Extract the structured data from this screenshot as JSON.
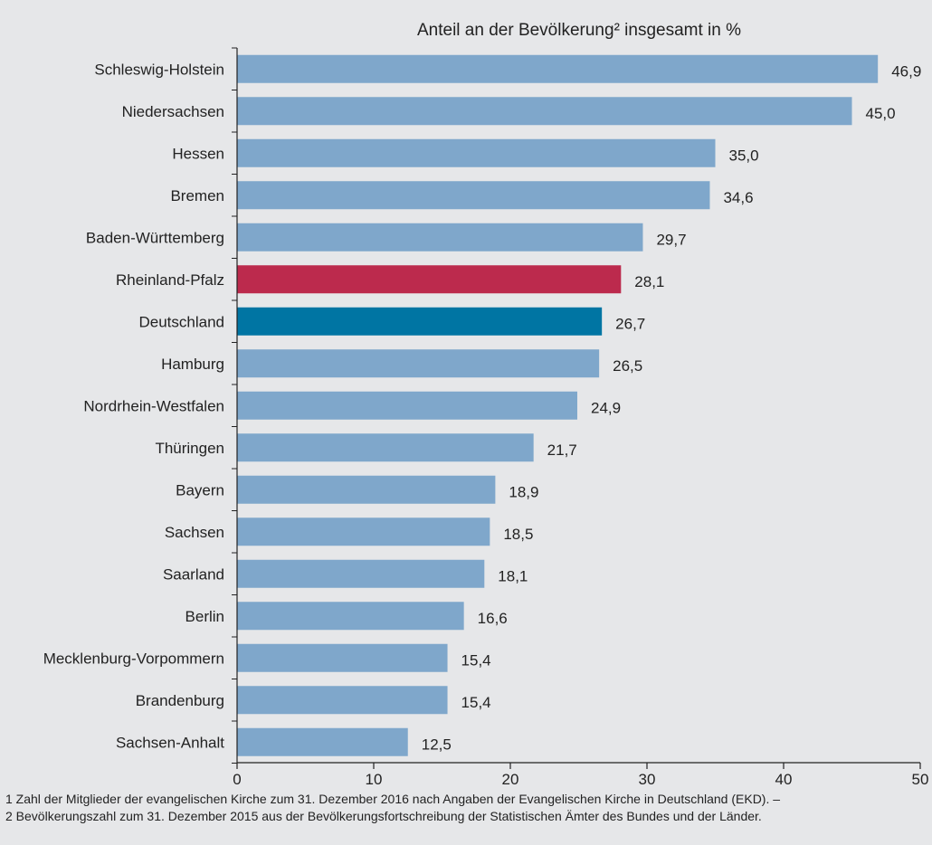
{
  "chart_data": {
    "type": "bar",
    "orientation": "horizontal",
    "title": "Anteil an der Bevölkerung² insgesamt in %",
    "xlim": [
      0,
      50
    ],
    "ticks": [
      0,
      10,
      20,
      30,
      40,
      50
    ],
    "grid": false,
    "categories": [
      "Schleswig-Holstein",
      "Niedersachsen",
      "Hessen",
      "Bremen",
      "Baden-Württemberg",
      "Rheinland-Pfalz",
      "Deutschland",
      "Hamburg",
      "Nordrhein-Westfalen",
      "Thüringen",
      "Bayern",
      "Sachsen",
      "Saarland",
      "Berlin",
      "Mecklenburg-Vorpommern",
      "Brandenburg",
      "Sachsen-Anhalt"
    ],
    "values": [
      46.9,
      45.0,
      35.0,
      34.6,
      29.7,
      28.1,
      26.7,
      26.5,
      24.9,
      21.7,
      18.9,
      18.5,
      18.1,
      16.6,
      15.4,
      15.4,
      12.5
    ],
    "value_labels": [
      "46,9",
      "45,0",
      "35,0",
      "34,6",
      "29,7",
      "28,1",
      "26,7",
      "26,5",
      "24,9",
      "21,7",
      "18,9",
      "18,5",
      "18,1",
      "16,6",
      "15,4",
      "15,4",
      "12,5"
    ],
    "colors": {
      "default": "#7fa7cb",
      "Rheinland-Pfalz": "#bc2a4d",
      "Deutschland": "#0075a3"
    }
  },
  "footnotes": [
    "1 Zahl der Mitglieder der evangelischen Kirche zum 31. Dezember 2016 nach Angaben der Evangelischen Kirche in Deutschland (EKD). –",
    "2 Bevölkerungszahl zum 31. Dezember 2015 aus der Bevölkerungsfortschreibung der Statistischen Ämter des Bundes und der Länder."
  ]
}
